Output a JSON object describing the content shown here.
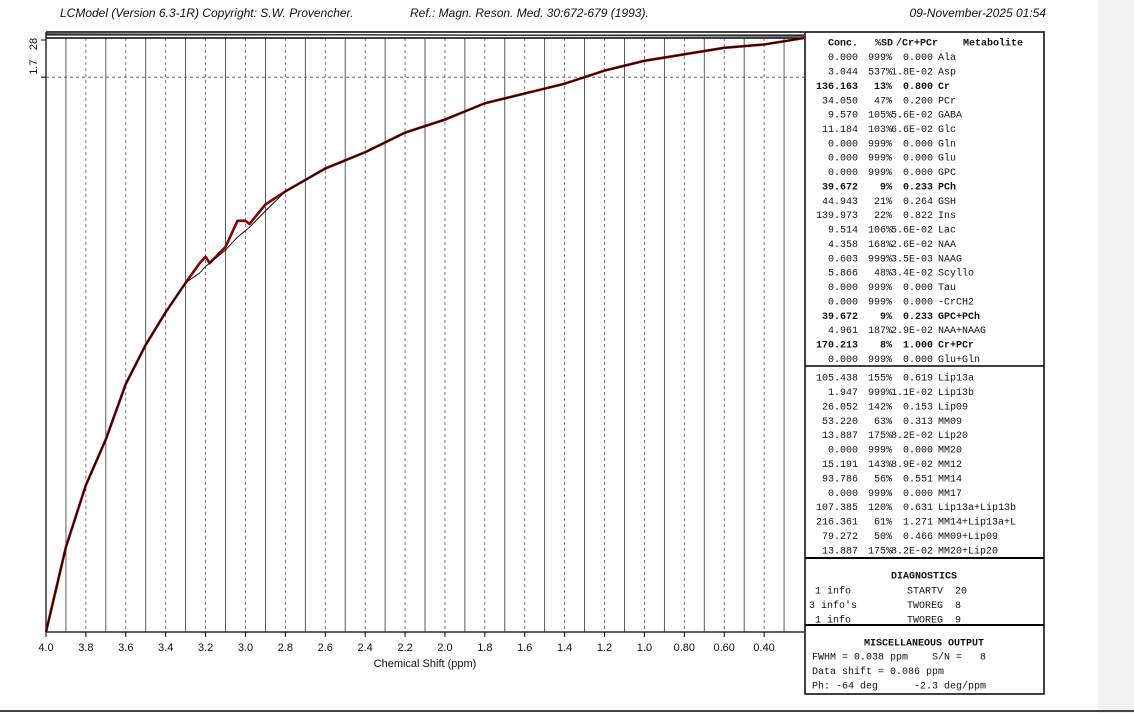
{
  "header": {
    "program": "LCModel (Version 6.3-1R) Copyright: S.W. Provencher.",
    "reference": "Ref.: Magn. Reson. Med. 30:672-679 (1993).",
    "date": "09-November-2025  01:54"
  },
  "chart_data": {
    "type": "line",
    "x_label": "Chemical Shift (ppm)",
    "residual_label": "28",
    "x": [
      4.0,
      3.9,
      3.8,
      3.7,
      3.6,
      3.5,
      3.4,
      3.3,
      3.23,
      3.2,
      3.18,
      3.1,
      3.04,
      3.0,
      2.98,
      2.9,
      2.8,
      2.6,
      2.4,
      2.2,
      2.0,
      1.8,
      1.6,
      1.4,
      1.2,
      1.0,
      0.8,
      0.6,
      0.4,
      0.2
    ],
    "series": [
      {
        "name": "Data",
        "color": "#8b0000",
        "values": [
          0,
          0.26,
          0.45,
          0.59,
          0.76,
          0.88,
          0.98,
          1.07,
          1.13,
          1.15,
          1.13,
          1.18,
          1.26,
          1.26,
          1.25,
          1.31,
          1.35,
          1.42,
          1.47,
          1.53,
          1.57,
          1.62,
          1.65,
          1.68,
          1.72,
          1.75,
          1.77,
          1.79,
          1.8,
          1.82
        ]
      },
      {
        "name": "Fit",
        "color": "#000000",
        "values": [
          0,
          0.26,
          0.45,
          0.59,
          0.76,
          0.88,
          0.98,
          1.07,
          1.1,
          1.12,
          1.13,
          1.17,
          1.21,
          1.23,
          1.24,
          1.29,
          1.35,
          1.42,
          1.47,
          1.53,
          1.57,
          1.62,
          1.65,
          1.68,
          1.72,
          1.75,
          1.77,
          1.79,
          1.8,
          1.82
        ]
      }
    ],
    "xlim": [
      4.0,
      0.2
    ],
    "ylim": [
      0,
      1.82
    ],
    "xticks": [
      {
        "value": 4,
        "label": "4.0"
      },
      3.8,
      3.6,
      3.4,
      3.2,
      {
        "value": 3,
        "label": "3.0"
      },
      2.8,
      2.6,
      2.4,
      2.2,
      {
        "value": 2,
        "label": "2.0"
      },
      1.8,
      1.6,
      1.4,
      1.2,
      {
        "value": 1,
        "label": "1.0"
      },
      {
        "value": 0.8,
        "label": "0.80"
      },
      {
        "value": 0.6,
        "label": "0.60"
      },
      {
        "value": 0.4,
        "label": "0.40"
      }
    ],
    "yticks": [
      1.7
    ],
    "grid": true
  },
  "concentrations": {
    "header": [
      "Conc.",
      "%SD",
      "/Cr+PCr",
      "Metabolite"
    ],
    "rows": [
      {
        "cells": [
          "0.000",
          "999%",
          "0.000",
          "Ala"
        ],
        "color": "#333333"
      },
      {
        "cells": [
          "3.044",
          "537%",
          "1.8E-02",
          "Asp"
        ],
        "color": "#333333"
      },
      {
        "cells": [
          "136.163",
          "13%",
          "0.800",
          "Cr"
        ],
        "color": "#0000cc"
      },
      {
        "cells": [
          "34.050",
          "47%",
          "0.200",
          "PCr"
        ],
        "color": "#333333"
      },
      {
        "cells": [
          "9.570",
          "105%",
          "5.6E-02",
          "GABA"
        ],
        "color": "#333333"
      },
      {
        "cells": [
          "11.184",
          "103%",
          "6.6E-02",
          "Glc"
        ],
        "color": "#333333"
      },
      {
        "cells": [
          "0.000",
          "999%",
          "0.000",
          "Gln"
        ],
        "color": "#333333"
      },
      {
        "cells": [
          "0.000",
          "999%",
          "0.000",
          "Glu"
        ],
        "color": "#333333"
      },
      {
        "cells": [
          "0.000",
          "999%",
          "0.000",
          "GPC"
        ],
        "color": "#333333"
      },
      {
        "cells": [
          "39.672",
          "9%",
          "0.233",
          "PCh"
        ],
        "color": "#0000cc"
      },
      {
        "cells": [
          "44.943",
          "21%",
          "0.264",
          "GSH"
        ],
        "color": "#333333"
      },
      {
        "cells": [
          "139.973",
          "22%",
          "0.822",
          "Ins"
        ],
        "color": "#333333"
      },
      {
        "cells": [
          "9.514",
          "106%",
          "5.6E-02",
          "Lac"
        ],
        "color": "#333333"
      },
      {
        "cells": [
          "4.358",
          "168%",
          "2.6E-02",
          "NAA"
        ],
        "color": "#333333"
      },
      {
        "cells": [
          "0.603",
          "999%",
          "3.5E-03",
          "NAAG"
        ],
        "color": "#333333"
      },
      {
        "cells": [
          "5.866",
          "48%",
          "3.4E-02",
          "Scyllo"
        ],
        "color": "#333333"
      },
      {
        "cells": [
          "0.000",
          "999%",
          "0.000",
          "Tau"
        ],
        "color": "#333333"
      },
      {
        "cells": [
          "0.000",
          "999%",
          "0.000",
          "-CrCH2"
        ],
        "color": "#333333"
      },
      {
        "cells": [
          "39.672",
          "9%",
          "0.233",
          "GPC+PCh"
        ],
        "color": "#0000cc"
      },
      {
        "cells": [
          "4.961",
          "187%",
          "2.9E-02",
          "NAA+NAAG"
        ],
        "color": "#333333"
      },
      {
        "cells": [
          "170.213",
          "8%",
          "1.000",
          "Cr+PCr"
        ],
        "color": "#0000cc"
      },
      {
        "cells": [
          "0.000",
          "999%",
          "0.000",
          "Glu+Gln"
        ],
        "color": "#333333"
      }
    ]
  },
  "lipids": {
    "rows": [
      {
        "cells": [
          "105.438",
          "155%",
          "0.619",
          "Lip13a"
        ],
        "color": "#333333"
      },
      {
        "cells": [
          "1.947",
          "999%",
          "1.1E-02",
          "Lip13b"
        ],
        "color": "#333333"
      },
      {
        "cells": [
          "26.052",
          "142%",
          "0.153",
          "Lip09"
        ],
        "color": "#333333"
      },
      {
        "cells": [
          "53.220",
          "63%",
          "0.313",
          "MM09"
        ],
        "color": "#333333"
      },
      {
        "cells": [
          "13.887",
          "175%",
          "8.2E-02",
          "Lip20"
        ],
        "color": "#333333"
      },
      {
        "cells": [
          "0.000",
          "999%",
          "0.000",
          "MM20"
        ],
        "color": "#333333"
      },
      {
        "cells": [
          "15.191",
          "143%",
          "8.9E-02",
          "MM12"
        ],
        "color": "#333333"
      },
      {
        "cells": [
          "93.786",
          "56%",
          "0.551",
          "MM14"
        ],
        "color": "#333333"
      },
      {
        "cells": [
          "0.000",
          "999%",
          "0.000",
          "MM17"
        ],
        "color": "#333333"
      },
      {
        "cells": [
          "107.385",
          "120%",
          "0.631",
          "Lip13a+Lip13b"
        ],
        "color": "#333333"
      },
      {
        "cells": [
          "216.361",
          "61%",
          "1.271",
          "MM14+Lip13a+L"
        ],
        "color": "#333333"
      },
      {
        "cells": [
          "79.272",
          "50%",
          "0.466",
          "MM09+Lip09"
        ],
        "color": "#333333"
      },
      {
        "cells": [
          "13.887",
          "175%",
          "8.2E-02",
          "MM20+Lip20"
        ],
        "color": "#333333"
      }
    ]
  },
  "diagnostics": {
    "title": "DIAGNOSTICS",
    "rows": [
      [
        "1 info",
        "STARTV",
        "20"
      ],
      [
        "3 info's",
        "TWOREG",
        "8"
      ],
      [
        "1 info",
        "TWOREG",
        "9"
      ]
    ]
  },
  "misc": {
    "title": "MISCELLANEOUS OUTPUT",
    "lines": [
      "FWHM = 0.038 ppm    S/N =   8",
      "Data shift = 0.086 ppm",
      "Ph: -64 deg      -2.3 deg/ppm"
    ]
  }
}
